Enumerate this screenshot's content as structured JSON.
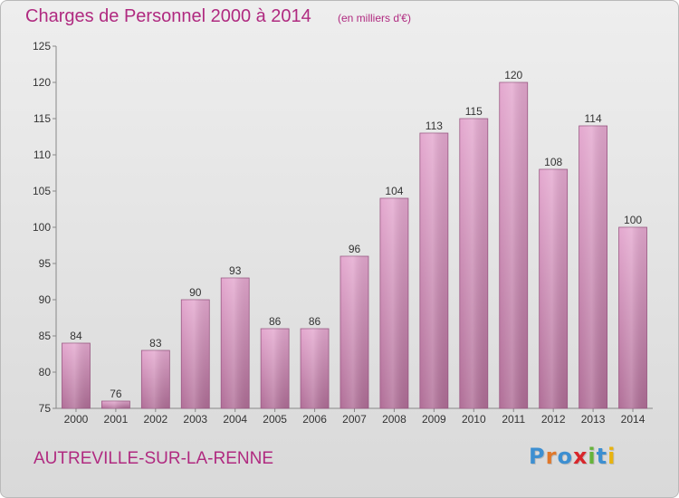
{
  "header": {
    "title": "Charges de Personnel 2000 à 2014",
    "subtitle": "(en milliers d'€)"
  },
  "footer": {
    "commune": "AUTREVILLE-SUR-LA-RENNE",
    "logo_letters": [
      {
        "char": "P",
        "color": "#3d8fd1"
      },
      {
        "char": "r",
        "color": "#e0782a"
      },
      {
        "char": "o",
        "color": "#3d8fd1"
      },
      {
        "char": "x",
        "color": "#d8262b"
      },
      {
        "char": "i",
        "color": "#65b33a"
      },
      {
        "char": "t",
        "color": "#3d8fd1"
      },
      {
        "char": "i",
        "color": "#e8b30e"
      }
    ]
  },
  "colors": {
    "accent": "#b02a80",
    "bar_top": "#e4a8cf",
    "bar_bottom": "#b06e97",
    "bar_edge": "#9c5a85"
  },
  "chart_data": {
    "type": "bar",
    "title": "Charges de Personnel 2000 à 2014",
    "subtitle": "(en milliers d'€)",
    "categories": [
      "2000",
      "2001",
      "2002",
      "2003",
      "2004",
      "2005",
      "2006",
      "2007",
      "2008",
      "2009",
      "2010",
      "2011",
      "2012",
      "2013",
      "2014"
    ],
    "values": [
      84,
      76,
      83,
      90,
      93,
      86,
      86,
      96,
      104,
      113,
      115,
      120,
      108,
      114,
      100
    ],
    "xlabel": "",
    "ylabel": "",
    "ylim": [
      75,
      125
    ],
    "yticks": [
      75,
      80,
      85,
      90,
      95,
      100,
      105,
      110,
      115,
      120,
      125
    ],
    "grid": false,
    "legend": "none",
    "data_labels": true
  }
}
